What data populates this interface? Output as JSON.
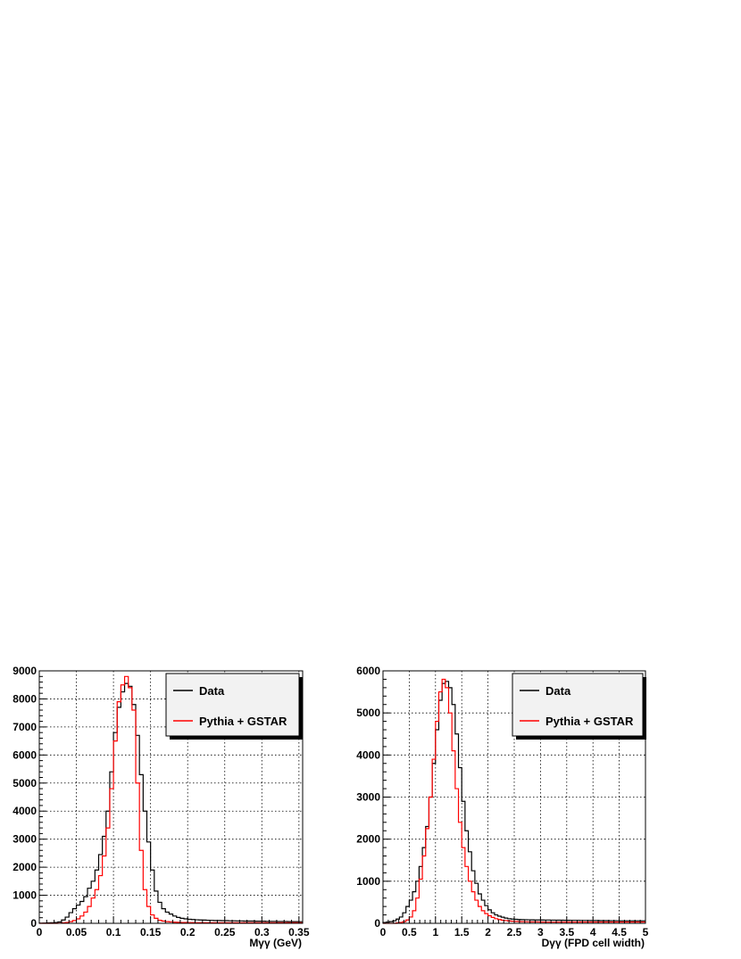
{
  "chart_data": [
    {
      "type": "histogram",
      "xlabel": "Mγγ (GeV)",
      "ylabel": "",
      "xlim": [
        0,
        0.355
      ],
      "ylim": [
        0,
        9000
      ],
      "x_ticks": [
        0,
        0.05,
        0.1,
        0.15,
        0.2,
        0.25,
        0.3,
        0.35
      ],
      "x_tick_labels": [
        "0",
        "0.05",
        "0.1",
        "0.15",
        "0.2",
        "0.25",
        "0.3",
        "0.35"
      ],
      "y_ticks": [
        0,
        1000,
        2000,
        3000,
        4000,
        5000,
        6000,
        7000,
        8000,
        9000
      ],
      "y_tick_labels": [
        "0",
        "1000",
        "2000",
        "3000",
        "4000",
        "5000",
        "6000",
        "7000",
        "8000",
        "9000"
      ],
      "grid": true,
      "legend_position": "top-right",
      "bin_width": 0.005,
      "series": [
        {
          "name": "Data",
          "color": "#000000",
          "values": [
            5,
            10,
            15,
            20,
            30,
            50,
            120,
            220,
            380,
            520,
            650,
            780,
            950,
            1250,
            1500,
            1900,
            2450,
            3100,
            4000,
            5400,
            6800,
            7700,
            8250,
            8550,
            8450,
            7800,
            6700,
            5300,
            4000,
            2900,
            1900,
            1150,
            750,
            520,
            400,
            330,
            260,
            210,
            180,
            160,
            145,
            135,
            125,
            120,
            115,
            110,
            105,
            100,
            100,
            95,
            95,
            90,
            90,
            85,
            85,
            80,
            80,
            80,
            75,
            75,
            75,
            70,
            70,
            70,
            65,
            65,
            65,
            60,
            60,
            60,
            58
          ]
        },
        {
          "name": "Pythia + GSTAR",
          "color": "#ff0000",
          "values": [
            0,
            0,
            0,
            0,
            0,
            5,
            15,
            30,
            60,
            100,
            160,
            260,
            400,
            600,
            900,
            1200,
            1700,
            2400,
            3400,
            4800,
            6500,
            7900,
            8500,
            8800,
            8400,
            7600,
            5000,
            2600,
            1200,
            600,
            300,
            180,
            110,
            80,
            60,
            50,
            40,
            35,
            30,
            28,
            26,
            24,
            22,
            20,
            20,
            20,
            20,
            20,
            20,
            20,
            20,
            20,
            20,
            20,
            20,
            20,
            20,
            20,
            20,
            20,
            20,
            20,
            20,
            20,
            20,
            20,
            20,
            20,
            20,
            20,
            20
          ]
        }
      ]
    },
    {
      "type": "histogram",
      "xlabel": "Dγγ (FPD cell width)",
      "ylabel": "",
      "xlim": [
        0,
        5
      ],
      "ylim": [
        0,
        6000
      ],
      "x_ticks": [
        0,
        0.5,
        1,
        1.5,
        2,
        2.5,
        3,
        3.5,
        4,
        4.5,
        5
      ],
      "x_tick_labels": [
        "0",
        "0.5",
        "1",
        "1.5",
        "2",
        "2.5",
        "3",
        "3.5",
        "4",
        "4.5",
        "5"
      ],
      "y_ticks": [
        0,
        1000,
        2000,
        3000,
        4000,
        5000,
        6000
      ],
      "y_tick_labels": [
        "0",
        "1000",
        "2000",
        "3000",
        "4000",
        "5000",
        "6000"
      ],
      "grid": true,
      "legend_position": "top-right",
      "bin_width": 0.0625,
      "series": [
        {
          "name": "Data",
          "color": "#000000",
          "values": [
            20,
            30,
            40,
            60,
            100,
            150,
            250,
            400,
            550,
            750,
            1000,
            1350,
            1800,
            2300,
            3000,
            3800,
            4600,
            5300,
            5700,
            5750,
            5600,
            5200,
            4500,
            3700,
            2900,
            2200,
            1700,
            1250,
            950,
            700,
            550,
            420,
            320,
            250,
            200,
            170,
            145,
            125,
            110,
            100,
            95,
            90,
            88,
            86,
            84,
            82,
            80,
            80,
            80,
            78,
            78,
            76,
            76,
            74,
            74,
            72,
            72,
            70,
            70,
            70,
            68,
            68,
            68,
            66,
            66,
            66,
            64,
            64,
            64,
            62,
            62,
            62,
            60,
            60,
            60,
            60,
            60,
            60,
            60,
            60
          ]
        },
        {
          "name": "Pythia + GSTAR",
          "color": "#ff0000",
          "values": [
            0,
            0,
            0,
            0,
            10,
            20,
            40,
            80,
            150,
            300,
            600,
            1050,
            1600,
            2250,
            3000,
            3900,
            4800,
            5500,
            5800,
            5600,
            5000,
            4100,
            3200,
            2400,
            1800,
            1350,
            1000,
            750,
            550,
            400,
            300,
            230,
            180,
            140,
            110,
            90,
            75,
            65,
            55,
            50,
            45,
            42,
            40,
            38,
            36,
            35,
            34,
            33,
            32,
            31,
            30,
            30,
            30,
            30,
            30,
            30,
            30,
            30,
            30,
            30,
            30,
            30,
            30,
            30,
            30,
            30,
            30,
            30,
            30,
            30,
            30,
            30,
            30,
            30,
            30,
            30,
            30,
            30,
            30,
            30
          ]
        }
      ]
    }
  ]
}
